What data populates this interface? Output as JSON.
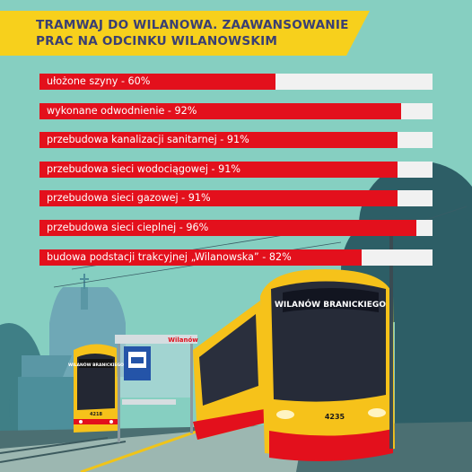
{
  "title_lines": [
    "TRAMWAJ DO WILANOWA. ZAAWANSOWANIE",
    "PRAC NA ODCINKU WILANOWSKIM"
  ],
  "chart_data": {
    "type": "bar",
    "orientation": "horizontal",
    "xlim": [
      0,
      100
    ],
    "unit": "%",
    "categories": [
      "ułożone szyny",
      "wykonane odwodnienie",
      "przebudowa kanalizacji sanitarnej",
      "przebudowa sieci wodociągowej",
      "przebudowa sieci gazowej",
      "przebudowa sieci cieplnej",
      "budowa podstacji trakcyjnej „Wilanowska”"
    ],
    "values": [
      60,
      92,
      91,
      91,
      91,
      96,
      82
    ],
    "labels": [
      "ułożone szyny -  60%",
      "wykonane odwodnienie - 92%",
      "przebudowa kanalizacji sanitarnej - 91%",
      "przebudowa sieci wodociągowej - 91%",
      "przebudowa sieci gazowej - 91%",
      "przebudowa sieci cieplnej - 96%",
      "budowa podstacji trakcyjnej „Wilanowska” - 82%"
    ]
  },
  "illustration": {
    "main_tram_sign": "WILANÓW BRANICKIEGO",
    "main_tram_number": "4235",
    "small_tram_sign": "WILANÓW BRANICKIEGO",
    "small_tram_number": "4218",
    "stop_name": "Wilanów"
  },
  "colors": {
    "title_banner": "#f7d01c",
    "title_text": "#3a3f73",
    "bar_fill": "#e3101c",
    "bar_track": "#f1f1f1",
    "tram_yellow": "#f6c21a"
  }
}
